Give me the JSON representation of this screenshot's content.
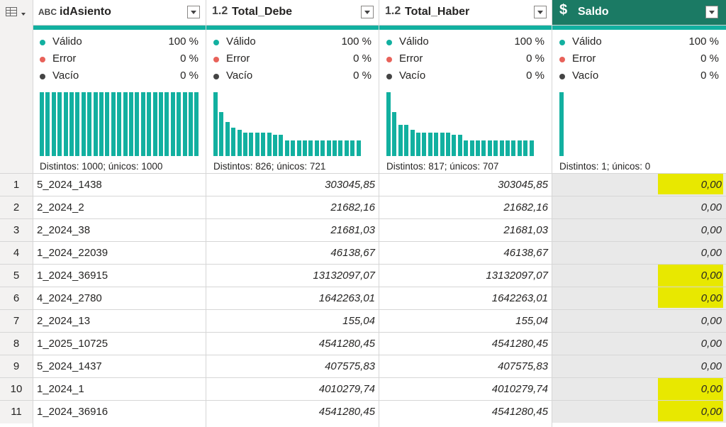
{
  "columns": [
    {
      "type_icon": "ABC",
      "name": "idAsiento"
    },
    {
      "type_icon": "1.2",
      "name": "Total_Debe"
    },
    {
      "type_icon": "1.2",
      "name": "Total_Haber"
    },
    {
      "type_icon": "$",
      "name": "Saldo"
    }
  ],
  "quality_labels": {
    "valid": "Válido",
    "error": "Error",
    "empty": "Vacío"
  },
  "quality_colors": {
    "valid": "#12b0a0",
    "error": "#e8625a",
    "empty": "#444444"
  },
  "profiles": [
    {
      "valid": "100 %",
      "error": "0 %",
      "empty": "0 %",
      "distinct": "Distintos: 1000; únicos: 1000",
      "bars": [
        1,
        1,
        1,
        1,
        1,
        1,
        1,
        1,
        1,
        1,
        1,
        1,
        1,
        1,
        1,
        1,
        1,
        1,
        1,
        1,
        1,
        1,
        1,
        1,
        1,
        1,
        1
      ]
    },
    {
      "valid": "100 %",
      "error": "0 %",
      "empty": "0 %",
      "distinct": "Distintos: 826; únicos: 721",
      "bars": [
        1,
        0.69,
        0.53,
        0.45,
        0.41,
        0.37,
        0.37,
        0.37,
        0.37,
        0.37,
        0.33,
        0.33,
        0.24,
        0.24,
        0.24,
        0.24,
        0.24,
        0.24,
        0.24,
        0.24,
        0.24,
        0.24,
        0.24,
        0.24,
        0.24
      ]
    },
    {
      "valid": "100 %",
      "error": "0 %",
      "empty": "0 %",
      "distinct": "Distintos: 817; únicos: 707",
      "bars": [
        1,
        0.69,
        0.49,
        0.49,
        0.41,
        0.37,
        0.37,
        0.37,
        0.37,
        0.37,
        0.37,
        0.33,
        0.33,
        0.24,
        0.24,
        0.24,
        0.24,
        0.24,
        0.24,
        0.24,
        0.24,
        0.24,
        0.24,
        0.24,
        0.24
      ]
    },
    {
      "valid": "100 %",
      "error": "0 %",
      "empty": "0 %",
      "distinct": "Distintos: 1; únicos: 0",
      "bars": [
        1
      ]
    }
  ],
  "rows": [
    {
      "n": "1",
      "id": "5_2024_1438",
      "debe": "303045,85",
      "haber": "303045,85",
      "saldo": "0,00",
      "highlight": true
    },
    {
      "n": "2",
      "id": "2_2024_2",
      "debe": "21682,16",
      "haber": "21682,16",
      "saldo": "0,00",
      "highlight": false
    },
    {
      "n": "3",
      "id": "2_2024_38",
      "debe": "21681,03",
      "haber": "21681,03",
      "saldo": "0,00",
      "highlight": false
    },
    {
      "n": "4",
      "id": "1_2024_22039",
      "debe": "46138,67",
      "haber": "46138,67",
      "saldo": "0,00",
      "highlight": false
    },
    {
      "n": "5",
      "id": "1_2024_36915",
      "debe": "13132097,07",
      "haber": "13132097,07",
      "saldo": "0,00",
      "highlight": true
    },
    {
      "n": "6",
      "id": "4_2024_2780",
      "debe": "1642263,01",
      "haber": "1642263,01",
      "saldo": "0,00",
      "highlight": true
    },
    {
      "n": "7",
      "id": "2_2024_13",
      "debe": "155,04",
      "haber": "155,04",
      "saldo": "0,00",
      "highlight": false
    },
    {
      "n": "8",
      "id": "1_2025_10725",
      "debe": "4541280,45",
      "haber": "4541280,45",
      "saldo": "0,00",
      "highlight": false
    },
    {
      "n": "9",
      "id": "5_2024_1437",
      "debe": "407575,83",
      "haber": "407575,83",
      "saldo": "0,00",
      "highlight": false
    },
    {
      "n": "10",
      "id": "1_2024_1",
      "debe": "4010279,74",
      "haber": "4010279,74",
      "saldo": "0,00",
      "highlight": true
    },
    {
      "n": "11",
      "id": "1_2024_36916",
      "debe": "4541280,45",
      "haber": "4541280,45",
      "saldo": "0,00",
      "highlight": true
    }
  ]
}
